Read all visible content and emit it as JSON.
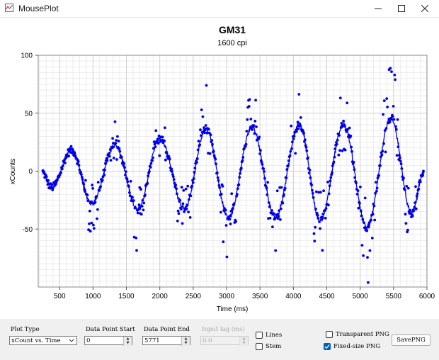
{
  "window": {
    "title": "MousePlot",
    "minimize_icon": "minimize-icon",
    "maximize_icon": "maximize-icon",
    "close_icon": "close-icon"
  },
  "chart_data": {
    "type": "scatter",
    "title": "GM31",
    "subtitle": "1600 cpi",
    "xlabel": "Time (ms)",
    "ylabel": "xCounts",
    "xlim": [
      180,
      6000
    ],
    "ylim": [
      -100,
      100
    ],
    "x_ticks": [
      500,
      1000,
      1500,
      2000,
      2500,
      3000,
      3500,
      4000,
      4500,
      5000,
      5500,
      6000
    ],
    "y_ticks": [
      100,
      50,
      0,
      -50
    ],
    "grid": true,
    "marker_color": "#0000ee",
    "line_color": "#0000ee",
    "series": [
      {
        "line": "smoothed",
        "peaks": [
          {
            "t": 230,
            "y": 0
          },
          {
            "t": 380,
            "y": -14
          },
          {
            "t": 680,
            "y": 18
          },
          {
            "t": 980,
            "y": -28
          },
          {
            "t": 1330,
            "y": 22
          },
          {
            "t": 1670,
            "y": -33
          },
          {
            "t": 2000,
            "y": 28
          },
          {
            "t": 2370,
            "y": -32
          },
          {
            "t": 2690,
            "y": 36
          },
          {
            "t": 3030,
            "y": -40
          },
          {
            "t": 3380,
            "y": 38
          },
          {
            "t": 3730,
            "y": -40
          },
          {
            "t": 4090,
            "y": 40
          },
          {
            "t": 4400,
            "y": -43
          },
          {
            "t": 4750,
            "y": 40
          },
          {
            "t": 5100,
            "y": -48
          },
          {
            "t": 5460,
            "y": 46
          },
          {
            "t": 5770,
            "y": -36
          },
          {
            "t": 5960,
            "y": 0
          }
        ]
      }
    ]
  },
  "controls": {
    "plot_type": {
      "label": "Plot Type",
      "value": "xCount vs. Time"
    },
    "data_point_start": {
      "label": "Data Point Start",
      "value": "0"
    },
    "data_point_end": {
      "label": "Data Point End",
      "value": "5771"
    },
    "input_lag": {
      "label": "Input lag (ms)",
      "value": "0.0"
    },
    "lines": {
      "label": "Lines",
      "checked": false
    },
    "stem": {
      "label": "Stem",
      "checked": false
    },
    "transparent_png": {
      "label": "Transparent PNG",
      "checked": false
    },
    "fixed_size_png": {
      "label": "Fixed-size PNG",
      "checked": true
    },
    "save_button": "SavePNG"
  }
}
